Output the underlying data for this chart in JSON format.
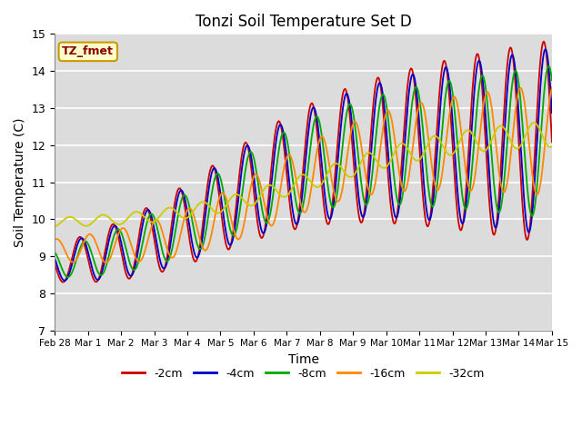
{
  "title": "Tonzi Soil Temperature Set D",
  "xlabel": "Time",
  "ylabel": "Soil Temperature (C)",
  "ylim": [
    7.0,
    15.0
  ],
  "yticks": [
    7.0,
    8.0,
    9.0,
    10.0,
    11.0,
    12.0,
    13.0,
    14.0,
    15.0
  ],
  "plot_bg_color": "#dcdcdc",
  "label_box_text": "TZ_fmet",
  "label_box_color": "#ffffcc",
  "label_box_edge": "#cc9900",
  "series_colors": {
    "-2cm": "#cc0000",
    "-4cm": "#0000cc",
    "-8cm": "#00aa00",
    "-16cm": "#ff8800",
    "-32cm": "#cccc00"
  },
  "xtick_labels": [
    "Feb 28",
    "Mar 1",
    "Mar 2",
    "Mar 3",
    "Mar 4",
    "Mar 5",
    "Mar 6",
    "Mar 7",
    "Mar 8",
    "Mar 9",
    "Mar 10",
    "Mar 11",
    "Mar 12",
    "Mar 13",
    "Mar 14",
    "Mar 15"
  ],
  "n_points": 600,
  "seed": 0
}
